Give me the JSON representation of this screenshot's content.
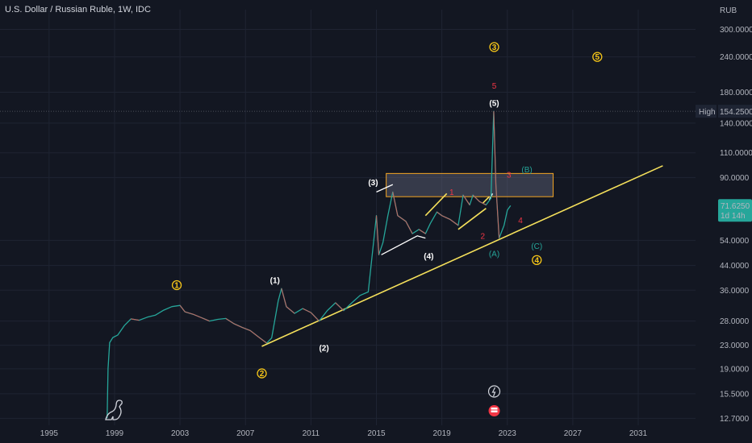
{
  "header": {
    "title": "U.S. Dollar / Russian Ruble, 1W, IDC"
  },
  "chart_data": {
    "type": "line",
    "currency": "RUB",
    "y_scale": "log",
    "ylim": [
      12,
      330
    ],
    "xlim": [
      1992.0,
      2034.5
    ],
    "y_ticks": [
      "300.0000",
      "240.0000",
      "180.0000",
      "140.0000",
      "110.0000",
      "90.0000",
      "54.0000",
      "44.0000",
      "36.0000",
      "28.0000",
      "23.0000",
      "19.0000",
      "15.5000",
      "12.7000"
    ],
    "x_ticks": [
      "1995",
      "1999",
      "2003",
      "2007",
      "2011",
      "2015",
      "2019",
      "2023",
      "2027",
      "2031"
    ],
    "price_labels": {
      "high_label": "High",
      "high_value": "154.2500",
      "high_price": 154.25,
      "last_value": "71.6250",
      "last_price": 71.625,
      "countdown": "1d 14h"
    },
    "series": [
      {
        "values": [
          [
            1998.55,
            12.7
          ],
          [
            1998.6,
            19.0
          ],
          [
            1998.7,
            23.5
          ],
          [
            1998.9,
            24.5
          ],
          [
            1999.2,
            25.0
          ],
          [
            1999.6,
            27.0
          ],
          [
            2000.0,
            28.5
          ],
          [
            2000.5,
            28.2
          ],
          [
            2001.0,
            28.9
          ],
          [
            2001.5,
            29.4
          ],
          [
            2002.0,
            30.6
          ],
          [
            2002.5,
            31.5
          ],
          [
            2003.0,
            31.8
          ],
          [
            2003.3,
            30.2
          ],
          [
            2003.8,
            29.6
          ],
          [
            2004.3,
            28.8
          ],
          [
            2004.8,
            28.0
          ],
          [
            2005.3,
            28.4
          ],
          [
            2005.8,
            28.6
          ],
          [
            2006.3,
            27.4
          ],
          [
            2006.8,
            26.6
          ],
          [
            2007.3,
            25.9
          ],
          [
            2007.8,
            24.6
          ],
          [
            2008.3,
            23.4
          ],
          [
            2008.6,
            24.4
          ],
          [
            2009.0,
            33.0
          ],
          [
            2009.2,
            36.5
          ],
          [
            2009.5,
            31.5
          ],
          [
            2010.0,
            29.8
          ],
          [
            2010.5,
            31.0
          ],
          [
            2011.0,
            30.0
          ],
          [
            2011.5,
            28.0
          ],
          [
            2012.0,
            30.5
          ],
          [
            2012.5,
            32.5
          ],
          [
            2013.0,
            30.5
          ],
          [
            2013.5,
            32.5
          ],
          [
            2014.0,
            34.5
          ],
          [
            2014.5,
            35.5
          ],
          [
            2015.0,
            66.0
          ],
          [
            2015.15,
            48.0
          ],
          [
            2015.4,
            53.0
          ],
          [
            2015.7,
            66.0
          ],
          [
            2016.0,
            80.0
          ],
          [
            2016.3,
            66.0
          ],
          [
            2016.8,
            63.0
          ],
          [
            2017.2,
            57.0
          ],
          [
            2017.6,
            59.0
          ],
          [
            2018.0,
            57.0
          ],
          [
            2018.3,
            62.0
          ],
          [
            2018.7,
            68.0
          ],
          [
            2019.0,
            66.0
          ],
          [
            2019.5,
            64.0
          ],
          [
            2020.0,
            61.0
          ],
          [
            2020.3,
            78.0
          ],
          [
            2020.7,
            72.0
          ],
          [
            2020.9,
            78.0
          ],
          [
            2021.3,
            74.0
          ],
          [
            2021.7,
            72.0
          ],
          [
            2022.0,
            76.0
          ],
          [
            2022.17,
            154.25
          ],
          [
            2022.3,
            85.0
          ],
          [
            2022.5,
            55.0
          ],
          [
            2022.8,
            61.0
          ],
          [
            2023.0,
            69.0
          ],
          [
            2023.2,
            71.625
          ]
        ]
      }
    ],
    "trendlines": [
      {
        "color": "#f5e05b",
        "points": [
          [
            2008.0,
            22.8
          ],
          [
            2032.5,
            99.0
          ]
        ]
      },
      {
        "color": "#f5e05b",
        "points": [
          [
            2018.0,
            66.0
          ],
          [
            2019.3,
            79.0
          ]
        ]
      },
      {
        "color": "#f5e05b",
        "points": [
          [
            2020.0,
            59.0
          ],
          [
            2021.7,
            70.0
          ]
        ]
      },
      {
        "color": "#f5e05b",
        "points": [
          [
            2021.5,
            73.0
          ],
          [
            2021.9,
            77.0
          ]
        ]
      },
      {
        "color": "#ffffff",
        "points": [
          [
            2015.0,
            80.0
          ],
          [
            2016.0,
            85.0
          ]
        ]
      },
      {
        "color": "#ffffff",
        "points": [
          [
            2015.3,
            48.0
          ],
          [
            2017.5,
            56.0
          ],
          [
            2018.0,
            55.0
          ]
        ]
      },
      {
        "color": "#ffffff",
        "points": [
          [
            2021.9,
            75.0
          ],
          [
            2022.1,
            79.0
          ]
        ]
      }
    ],
    "range_box": {
      "x": [
        2015.6,
        2025.8
      ],
      "y": [
        77.0,
        93.0
      ]
    },
    "wave_labels": [
      {
        "text": "1",
        "x": 2002.8,
        "y": 37.5,
        "style": "circle",
        "color": "#f5c518"
      },
      {
        "text": "2",
        "x": 2008.0,
        "y": 18.3,
        "style": "circle",
        "color": "#f5c518"
      },
      {
        "text": "3",
        "x": 2022.2,
        "y": 260.0,
        "style": "circle",
        "color": "#f5c518"
      },
      {
        "text": "4",
        "x": 2024.8,
        "y": 46.0,
        "style": "circle",
        "color": "#f5c518"
      },
      {
        "text": "5",
        "x": 2028.5,
        "y": 240.0,
        "style": "circle",
        "color": "#f5c518"
      },
      {
        "text": "(1)",
        "x": 2008.8,
        "y": 39.0,
        "style": "plain",
        "color": "#ffffff"
      },
      {
        "text": "(2)",
        "x": 2011.8,
        "y": 22.5,
        "style": "plain",
        "color": "#ffffff"
      },
      {
        "text": "(3)",
        "x": 2014.8,
        "y": 86.5,
        "style": "plain",
        "color": "#ffffff"
      },
      {
        "text": "(4)",
        "x": 2018.2,
        "y": 47.5,
        "style": "plain",
        "color": "#ffffff"
      },
      {
        "text": "(5)",
        "x": 2022.2,
        "y": 165.0,
        "style": "plain",
        "color": "#ffffff"
      },
      {
        "text": "1",
        "x": 2019.6,
        "y": 80.0,
        "style": "plain",
        "color": "#f23645"
      },
      {
        "text": "2",
        "x": 2021.5,
        "y": 56.0,
        "style": "plain",
        "color": "#f23645"
      },
      {
        "text": "3",
        "x": 2023.1,
        "y": 92.0,
        "style": "plain",
        "color": "#f23645"
      },
      {
        "text": "4",
        "x": 2023.8,
        "y": 63.5,
        "style": "plain",
        "color": "#f23645"
      },
      {
        "text": "5",
        "x": 2022.2,
        "y": 190.0,
        "style": "plain",
        "color": "#f23645"
      },
      {
        "text": "(A)",
        "x": 2022.2,
        "y": 48.5,
        "style": "plain",
        "color": "#26a69a"
      },
      {
        "text": "(B)",
        "x": 2024.2,
        "y": 96.0,
        "style": "plain",
        "color": "#26a69a"
      },
      {
        "text": "(C)",
        "x": 2024.8,
        "y": 51.5,
        "style": "plain",
        "color": "#26a69a"
      }
    ],
    "colors": {
      "background": "#131722",
      "grid": "#1f2432",
      "price_line": "#26a69a",
      "price_line_down": "#ef5350",
      "high_badge": "#1e2433",
      "last_badge": "#26a69a",
      "event_icon": "#f23645"
    },
    "icons": [
      "dino-logo-icon",
      "lightning-event-icon",
      "flag-event-icon"
    ]
  }
}
